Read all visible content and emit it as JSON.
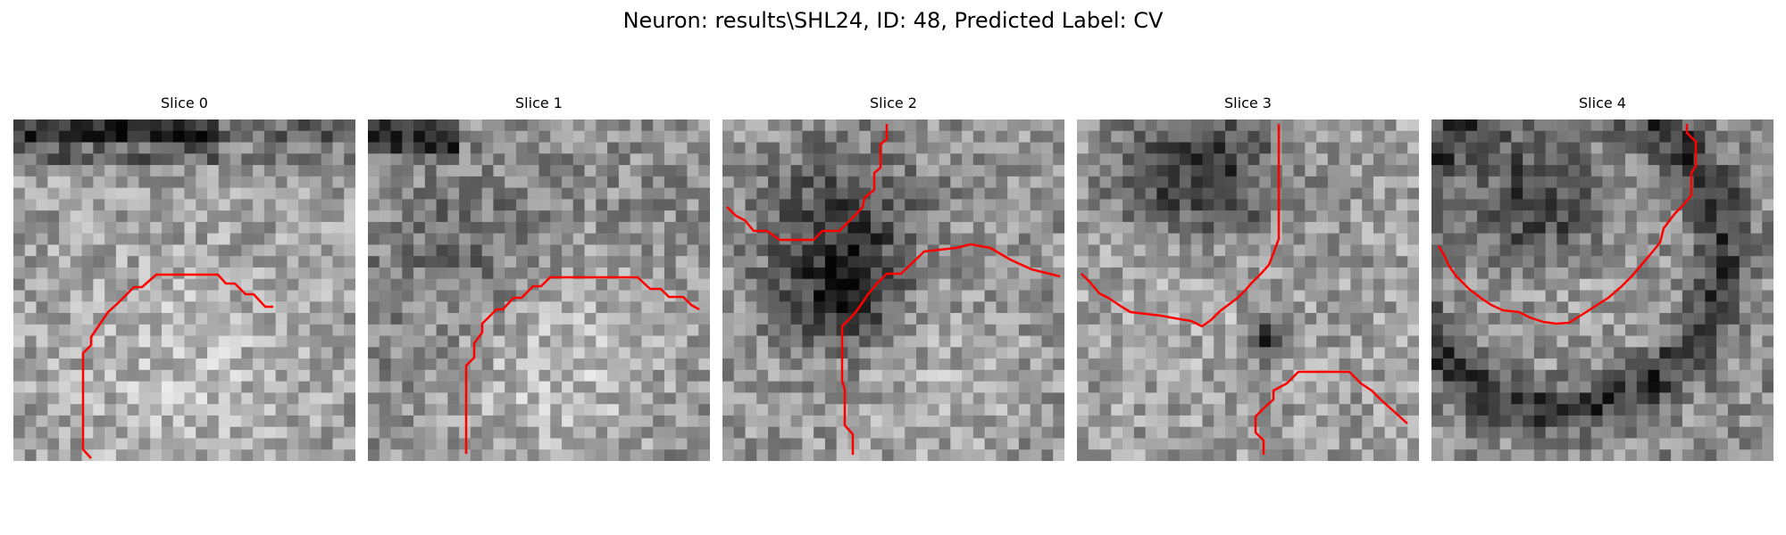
{
  "figure": {
    "title": "Neuron: results\\SHL24, ID: 48, Predicted Label: CV"
  },
  "panels": [
    {
      "title": "Slice 0"
    },
    {
      "title": "Slice 1"
    },
    {
      "title": "Slice 2"
    },
    {
      "title": "Slice 3"
    },
    {
      "title": "Slice 4"
    }
  ],
  "colors": {
    "contour": "#ff0000",
    "background": "#ffffff"
  }
}
